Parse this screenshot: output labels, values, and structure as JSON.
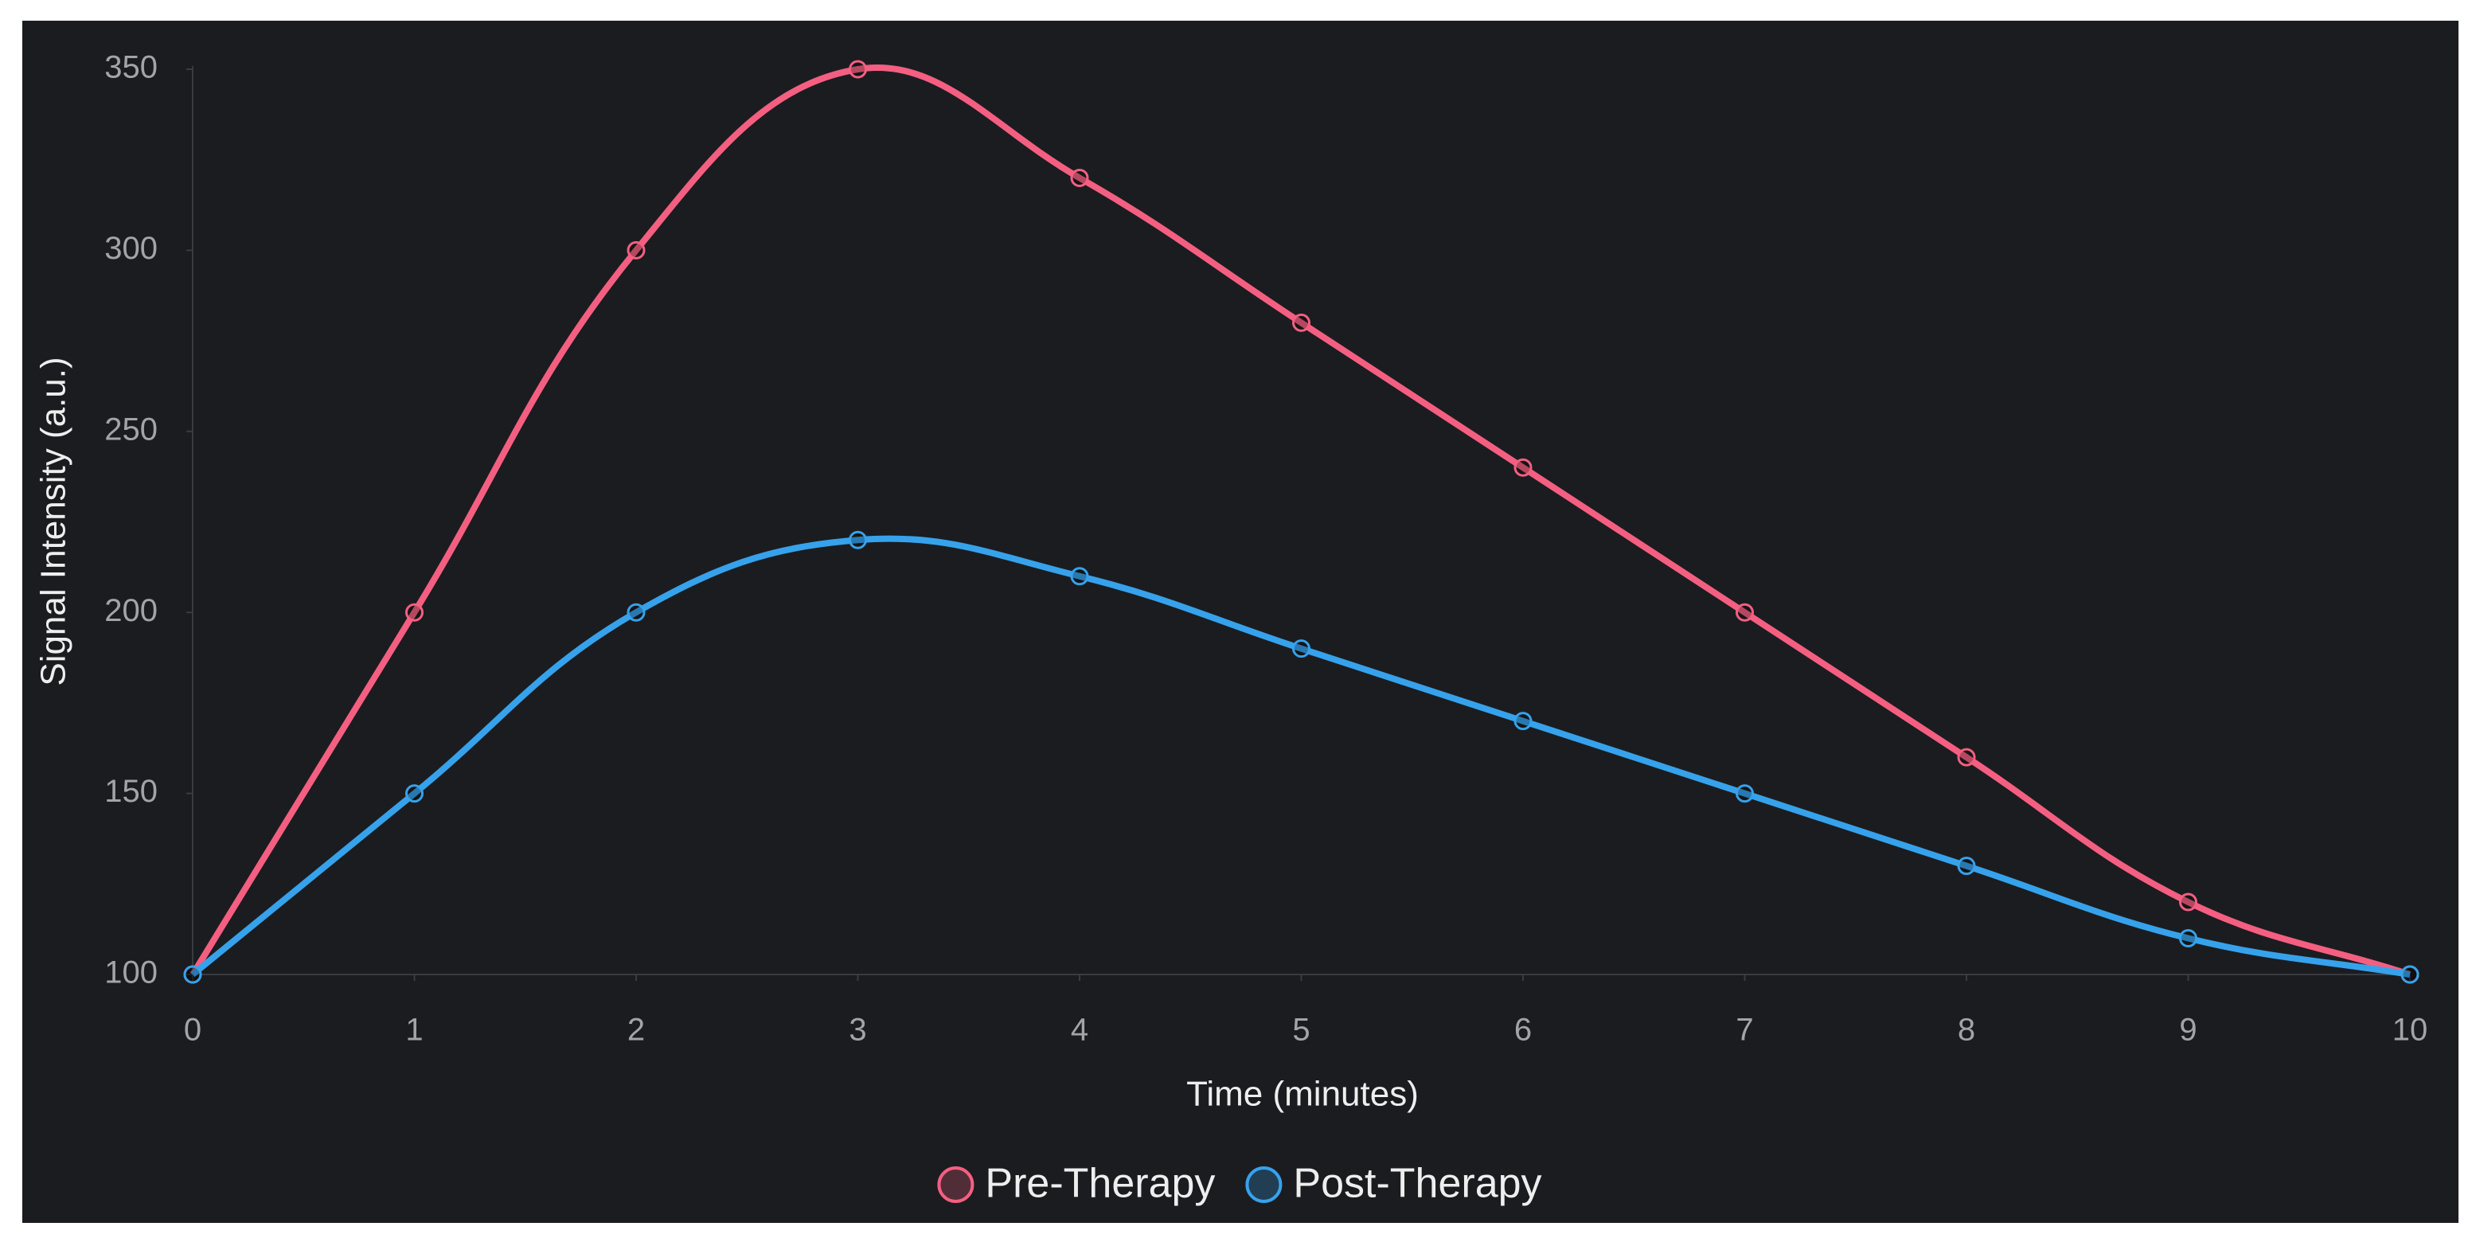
{
  "chart_data": {
    "type": "line",
    "x": [
      0,
      1,
      2,
      3,
      4,
      5,
      6,
      7,
      8,
      9,
      10
    ],
    "series": [
      {
        "name": "Pre-Therapy",
        "color": "#f45f81",
        "values": [
          100,
          200,
          300,
          350,
          320,
          280,
          240,
          200,
          160,
          120,
          100
        ]
      },
      {
        "name": "Post-Therapy",
        "color": "#36a2eb",
        "values": [
          100,
          150,
          200,
          220,
          210,
          190,
          170,
          150,
          130,
          110,
          100
        ]
      }
    ],
    "xlim": [
      0,
      10
    ],
    "xticks": [
      0,
      1,
      2,
      3,
      4,
      5,
      6,
      7,
      8,
      9,
      10
    ],
    "ylim": [
      100,
      350
    ],
    "yticks": [
      100,
      150,
      200,
      250,
      300,
      350
    ],
    "x_label": "Time (minutes)",
    "y_label": "Signal Intensity (a.u.)",
    "legend": "bottom"
  }
}
